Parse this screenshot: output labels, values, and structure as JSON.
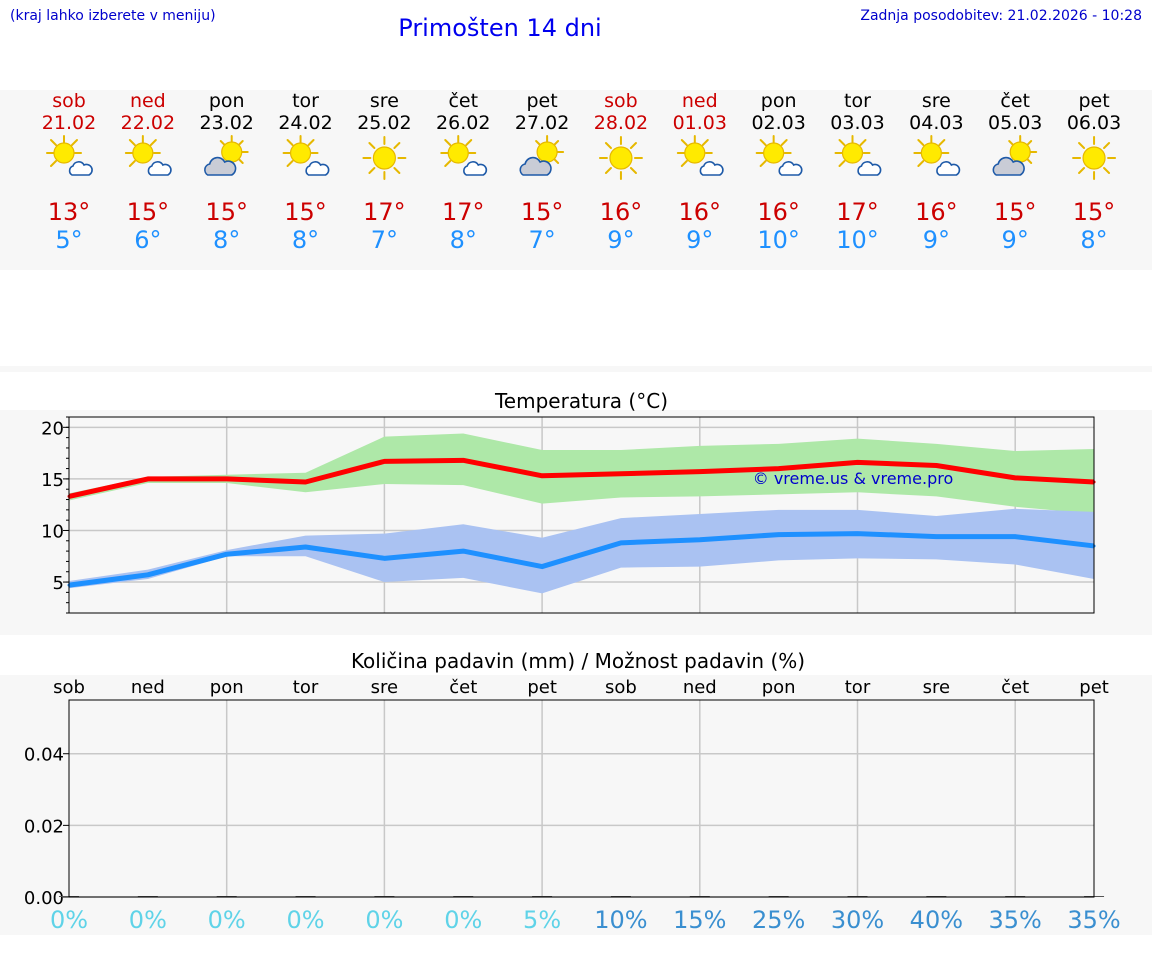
{
  "header": {
    "hint": "(kraj lahko izberete v meniju)",
    "title": "Primošten 14 dni",
    "updated": "Zadnja posodobitev: 21.02.2026 - 10:28"
  },
  "forecast": {
    "days": [
      {
        "day": "sob",
        "date": "21.02",
        "weekend": true,
        "icon": "sun-cloud-icon",
        "tmax": "13°",
        "tmin": "5°"
      },
      {
        "day": "ned",
        "date": "22.02",
        "weekend": true,
        "icon": "sun-cloud-icon",
        "tmax": "15°",
        "tmin": "6°"
      },
      {
        "day": "pon",
        "date": "23.02",
        "weekend": false,
        "icon": "cloud-sun-icon",
        "tmax": "15°",
        "tmin": "8°"
      },
      {
        "day": "tor",
        "date": "24.02",
        "weekend": false,
        "icon": "sun-cloud-icon",
        "tmax": "15°",
        "tmin": "8°"
      },
      {
        "day": "sre",
        "date": "25.02",
        "weekend": false,
        "icon": "sun-icon",
        "tmax": "17°",
        "tmin": "7°"
      },
      {
        "day": "čet",
        "date": "26.02",
        "weekend": false,
        "icon": "sun-cloud-icon",
        "tmax": "17°",
        "tmin": "8°"
      },
      {
        "day": "pet",
        "date": "27.02",
        "weekend": false,
        "icon": "cloud-sun-icon",
        "tmax": "15°",
        "tmin": "7°"
      },
      {
        "day": "sob",
        "date": "28.02",
        "weekend": true,
        "icon": "sun-icon",
        "tmax": "16°",
        "tmin": "9°"
      },
      {
        "day": "ned",
        "date": "01.03",
        "weekend": true,
        "icon": "sun-cloud-icon",
        "tmax": "16°",
        "tmin": "9°"
      },
      {
        "day": "pon",
        "date": "02.03",
        "weekend": false,
        "icon": "sun-cloud-icon",
        "tmax": "16°",
        "tmin": "10°"
      },
      {
        "day": "tor",
        "date": "03.03",
        "weekend": false,
        "icon": "sun-cloud-icon",
        "tmax": "17°",
        "tmin": "10°"
      },
      {
        "day": "sre",
        "date": "04.03",
        "weekend": false,
        "icon": "sun-cloud-icon",
        "tmax": "16°",
        "tmin": "9°"
      },
      {
        "day": "čet",
        "date": "05.03",
        "weekend": false,
        "icon": "cloud-sun-icon",
        "tmax": "15°",
        "tmin": "9°"
      },
      {
        "day": "pet",
        "date": "06.03",
        "weekend": false,
        "icon": "sun-icon",
        "tmax": "15°",
        "tmin": "8°"
      }
    ]
  },
  "colors": {
    "weekend": "#cc0000",
    "weekday": "#000000",
    "tmax": "#cc0000",
    "tmin": "#1e90ff",
    "precip_low": "#5fd3e8",
    "precip_high": "#3a8fd0",
    "max_line": "#ff0000",
    "max_band": "#aee8a8",
    "min_line": "#1e90ff",
    "min_band": "#aac2f2",
    "watermark": "#0000cc"
  },
  "chart_data": [
    {
      "type": "line",
      "title": "Temperatura (°C)",
      "watermark": "© vreme.us & vreme.pro",
      "ylim": [
        2,
        21
      ],
      "yticks": [
        5,
        10,
        15,
        20
      ],
      "grid": true,
      "series": [
        {
          "name": "max",
          "values": [
            13.3,
            15.0,
            15.0,
            14.7,
            16.7,
            16.8,
            15.3,
            15.5,
            15.7,
            16.0,
            16.6,
            16.3,
            15.1,
            14.7
          ],
          "band_low": [
            12.9,
            14.6,
            14.6,
            13.7,
            14.5,
            14.4,
            12.6,
            13.2,
            13.3,
            13.5,
            13.7,
            13.3,
            12.3,
            11.6
          ],
          "band_high": [
            13.6,
            15.2,
            15.4,
            15.6,
            19.1,
            19.4,
            17.8,
            17.8,
            18.2,
            18.4,
            18.9,
            18.4,
            17.7,
            17.9
          ]
        },
        {
          "name": "min",
          "values": [
            4.7,
            5.7,
            7.7,
            8.4,
            7.3,
            8.0,
            6.5,
            8.8,
            9.1,
            9.6,
            9.7,
            9.4,
            9.4,
            8.5
          ],
          "band_low": [
            4.4,
            5.3,
            7.5,
            7.5,
            5.0,
            5.4,
            3.9,
            6.4,
            6.5,
            7.1,
            7.3,
            7.2,
            6.7,
            5.3
          ],
          "band_high": [
            5.1,
            6.2,
            8.1,
            9.5,
            9.7,
            10.6,
            9.3,
            11.2,
            11.6,
            12.0,
            12.0,
            11.4,
            12.1,
            11.8
          ]
        }
      ]
    },
    {
      "type": "bar",
      "title": "Količina padavin (mm) / Možnost padavin (%)",
      "categories": [
        "sob",
        "ned",
        "pon",
        "tor",
        "sre",
        "čet",
        "pet",
        "sob",
        "ned",
        "pon",
        "tor",
        "sre",
        "čet",
        "pet"
      ],
      "values": [
        0,
        0,
        0,
        0,
        0,
        0,
        0,
        0,
        0,
        0,
        0,
        0,
        0,
        0
      ],
      "probability": [
        "0%",
        "0%",
        "0%",
        "0%",
        "0%",
        "0%",
        "5%",
        "10%",
        "15%",
        "25%",
        "30%",
        "40%",
        "35%",
        "35%"
      ],
      "ylim": [
        0,
        0.055
      ],
      "yticks": [
        "0.00",
        "0.02",
        "0.04"
      ],
      "ytick_values": [
        0,
        0.02,
        0.04
      ],
      "grid": true
    }
  ]
}
